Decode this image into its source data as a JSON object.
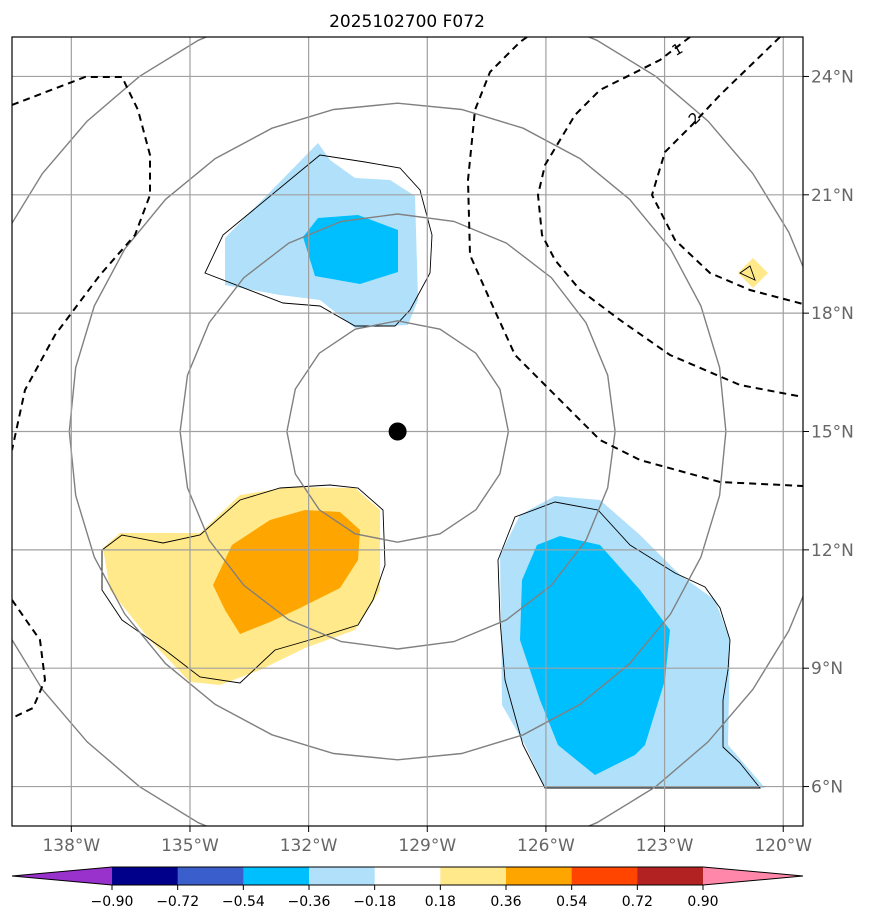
{
  "title": "2025102700 F072",
  "map": {
    "lon_range": [
      -139.5,
      -119.5
    ],
    "lat_range": [
      5.0,
      25.0
    ],
    "lon_ticks": [
      {
        "lon": -138,
        "label": "138°W"
      },
      {
        "lon": -135,
        "label": "135°W"
      },
      {
        "lon": -132,
        "label": "132°W"
      },
      {
        "lon": -129,
        "label": "129°W"
      },
      {
        "lon": -126,
        "label": "126°W"
      },
      {
        "lon": -123,
        "label": "123°W"
      },
      {
        "lon": -120,
        "label": "120°W"
      }
    ],
    "lat_ticks": [
      {
        "lat": 6,
        "label": "6°N"
      },
      {
        "lat": 9,
        "label": "9°N"
      },
      {
        "lat": 12,
        "label": "12°N"
      },
      {
        "lat": 15,
        "label": "15°N"
      },
      {
        "lat": 18,
        "label": "18°N"
      },
      {
        "lat": 21,
        "label": "21°N"
      },
      {
        "lat": 24,
        "label": "24°N"
      }
    ],
    "center": {
      "lon": -129.75,
      "lat": 15.0
    },
    "range_ring_radii_deg": [
      2.8,
      5.5,
      8.3,
      11.1
    ],
    "dashed_contour_labels": [
      "1",
      "2"
    ],
    "colors": {
      "grid": "#a0a0a0",
      "ring": "#808080",
      "neg_light": "#b0e0fa",
      "neg_mid": "#00bfff",
      "pos_light": "#ffe98b",
      "pos_mid": "#ffa500",
      "outline": "#000000",
      "center_marker": "#000000"
    }
  },
  "colorbar": {
    "levels": [
      "−0.90",
      "−0.72",
      "−0.54",
      "−0.36",
      "−0.18",
      "0.18",
      "0.36",
      "0.54",
      "0.72",
      "0.90"
    ],
    "colors": [
      "#9932cc",
      "#00008b",
      "#3a5fcd",
      "#00bfff",
      "#b0e0fa",
      "#ffffff",
      "#ffe98b",
      "#ffa500",
      "#ff4500",
      "#b22222",
      "#ff88aa"
    ]
  }
}
